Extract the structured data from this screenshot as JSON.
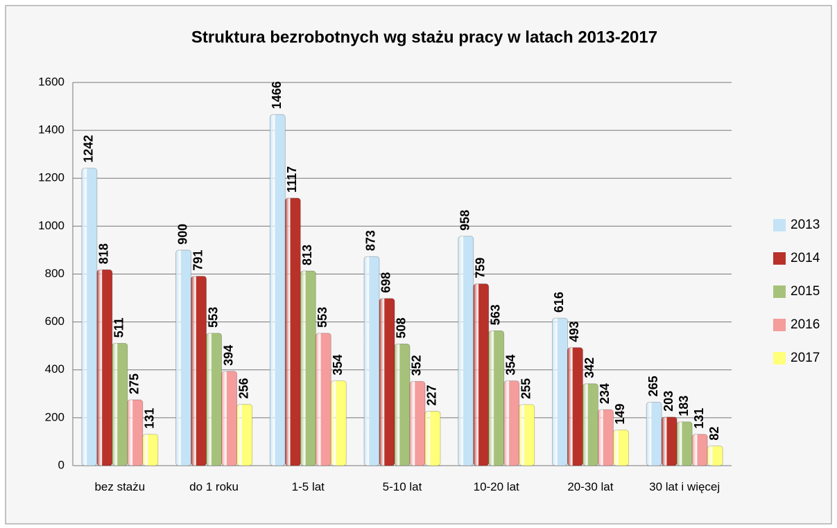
{
  "chart_data": {
    "type": "bar",
    "title": "Struktura bezrobotnych wg stażu pracy w latach 2013-2017",
    "categories": [
      "bez stażu",
      "do 1 roku",
      "1-5 lat",
      "5-10 lat",
      "10-20 lat",
      "20-30 lat",
      "30 lat i więcej"
    ],
    "series": [
      {
        "name": "2013",
        "color": "#c4e3f6",
        "values": [
          1242,
          900,
          1466,
          873,
          958,
          616,
          265
        ]
      },
      {
        "name": "2014",
        "color": "#b8322a",
        "values": [
          818,
          791,
          1117,
          698,
          759,
          493,
          203
        ]
      },
      {
        "name": "2015",
        "color": "#a6c27a",
        "values": [
          511,
          553,
          813,
          508,
          563,
          342,
          183
        ]
      },
      {
        "name": "2016",
        "color": "#f59c9c",
        "values": [
          275,
          394,
          553,
          352,
          354,
          234,
          131
        ]
      },
      {
        "name": "2017",
        "color": "#ffff7a",
        "values": [
          131,
          256,
          354,
          227,
          255,
          149,
          82
        ]
      }
    ],
    "ylim": [
      0,
      1600
    ],
    "yticks": [
      0,
      200,
      400,
      600,
      800,
      1000,
      1200,
      1400,
      1600
    ],
    "grid": true,
    "legend": "right"
  }
}
